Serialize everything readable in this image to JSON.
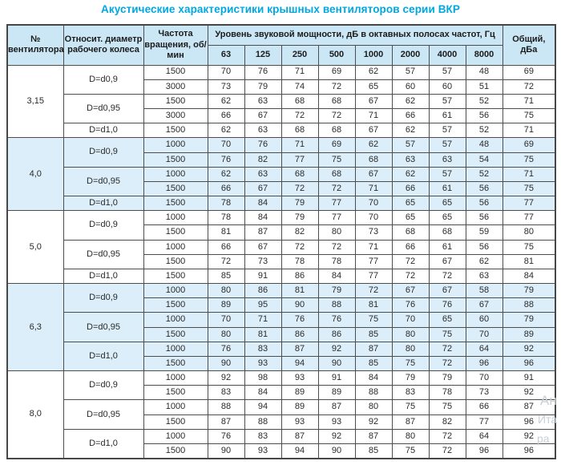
{
  "title": "Акустические характеристики крышных вентиляторов серии ВКР",
  "table": {
    "headers": {
      "fan": "№ вентилятора",
      "diameter": "Относит. диаметр рабочего колеса",
      "speed": "Частота вращения, об/мин",
      "span": "Уровень звуковой мощности, дБ в октавных полосах частот, Гц",
      "freqs": [
        "63",
        "125",
        "250",
        "500",
        "1000",
        "2000",
        "4000",
        "8000"
      ],
      "total": "Общий, дБа"
    },
    "groups": [
      {
        "fan": "3,15",
        "shaded": false,
        "subgroups": [
          {
            "diameter": "D=d0,9",
            "rows": [
              {
                "speed": "1500",
                "values": [
                  70,
                  76,
                  71,
                  69,
                  62,
                  57,
                  57,
                  48
                ],
                "total": 69
              },
              {
                "speed": "3000",
                "values": [
                  73,
                  79,
                  74,
                  72,
                  65,
                  60,
                  60,
                  51
                ],
                "total": 72
              }
            ]
          },
          {
            "diameter": "D=d0,95",
            "rows": [
              {
                "speed": "1500",
                "values": [
                  62,
                  63,
                  68,
                  68,
                  67,
                  62,
                  57,
                  52
                ],
                "total": 71
              },
              {
                "speed": "3000",
                "values": [
                  66,
                  67,
                  72,
                  72,
                  71,
                  66,
                  61,
                  56
                ],
                "total": 75
              }
            ]
          },
          {
            "diameter": "D=d1,0",
            "rows": [
              {
                "speed": "1500",
                "values": [
                  62,
                  63,
                  68,
                  68,
                  67,
                  62,
                  57,
                  52
                ],
                "total": 71
              }
            ]
          }
        ]
      },
      {
        "fan": "4,0",
        "shaded": true,
        "subgroups": [
          {
            "diameter": "D=d0,9",
            "rows": [
              {
                "speed": "1000",
                "values": [
                  70,
                  76,
                  71,
                  69,
                  62,
                  57,
                  57,
                  48
                ],
                "total": 69
              },
              {
                "speed": "1500",
                "values": [
                  76,
                  82,
                  77,
                  75,
                  68,
                  63,
                  63,
                  54
                ],
                "total": 75
              }
            ]
          },
          {
            "diameter": "D=d0,95",
            "rows": [
              {
                "speed": "1000",
                "values": [
                  62,
                  63,
                  68,
                  68,
                  67,
                  62,
                  57,
                  52
                ],
                "total": 71
              },
              {
                "speed": "1500",
                "values": [
                  66,
                  67,
                  72,
                  72,
                  71,
                  66,
                  61,
                  56
                ],
                "total": 75
              }
            ]
          },
          {
            "diameter": "D=d1,0",
            "rows": [
              {
                "speed": "1500",
                "values": [
                  78,
                  84,
                  79,
                  77,
                  70,
                  65,
                  65,
                  56
                ],
                "total": 77
              }
            ]
          }
        ]
      },
      {
        "fan": "5,0",
        "shaded": false,
        "subgroups": [
          {
            "diameter": "D=d0,9",
            "rows": [
              {
                "speed": "1000",
                "values": [
                  78,
                  84,
                  79,
                  77,
                  70,
                  65,
                  65,
                  56
                ],
                "total": 77
              },
              {
                "speed": "1500",
                "values": [
                  81,
                  87,
                  82,
                  80,
                  73,
                  68,
                  68,
                  59
                ],
                "total": 80
              }
            ]
          },
          {
            "diameter": "D=d0,95",
            "rows": [
              {
                "speed": "1000",
                "values": [
                  66,
                  67,
                  72,
                  72,
                  71,
                  66,
                  61,
                  56
                ],
                "total": 75
              },
              {
                "speed": "1500",
                "values": [
                  72,
                  73,
                  78,
                  78,
                  77,
                  72,
                  67,
                  62
                ],
                "total": 81
              }
            ]
          },
          {
            "diameter": "D=d1,0",
            "rows": [
              {
                "speed": "1500",
                "values": [
                  85,
                  91,
                  86,
                  84,
                  77,
                  72,
                  72,
                  63
                ],
                "total": 84
              }
            ]
          }
        ]
      },
      {
        "fan": "6,3",
        "shaded": true,
        "subgroups": [
          {
            "diameter": "D=d0,9",
            "rows": [
              {
                "speed": "1000",
                "values": [
                  80,
                  86,
                  81,
                  79,
                  72,
                  67,
                  67,
                  58
                ],
                "total": 79
              },
              {
                "speed": "1500",
                "values": [
                  89,
                  95,
                  90,
                  88,
                  81,
                  76,
                  76,
                  67
                ],
                "total": 88
              }
            ]
          },
          {
            "diameter": "D=d0,95",
            "rows": [
              {
                "speed": "1000",
                "values": [
                  70,
                  71,
                  76,
                  76,
                  75,
                  70,
                  65,
                  60
                ],
                "total": 79
              },
              {
                "speed": "1500",
                "values": [
                  80,
                  81,
                  86,
                  86,
                  85,
                  80,
                  75,
                  70
                ],
                "total": 89
              }
            ]
          },
          {
            "diameter": "D=d1,0",
            "rows": [
              {
                "speed": "1000",
                "values": [
                  76,
                  83,
                  87,
                  92,
                  87,
                  80,
                  72,
                  64
                ],
                "total": 92
              },
              {
                "speed": "1500",
                "values": [
                  90,
                  93,
                  94,
                  90,
                  85,
                  75,
                  72,
                  96
                ],
                "total": 96
              }
            ]
          }
        ]
      },
      {
        "fan": "8,0",
        "shaded": false,
        "subgroups": [
          {
            "diameter": "D=d0,9",
            "rows": [
              {
                "speed": "1000",
                "values": [
                  92,
                  98,
                  93,
                  91,
                  84,
                  79,
                  79,
                  70
                ],
                "total": 91
              },
              {
                "speed": "1500",
                "values": [
                  83,
                  84,
                  89,
                  89,
                  88,
                  83,
                  78,
                  73
                ],
                "total": 92
              }
            ]
          },
          {
            "diameter": "D=d0,95",
            "rows": [
              {
                "speed": "1000",
                "values": [
                  88,
                  94,
                  89,
                  87,
                  80,
                  75,
                  75,
                  66
                ],
                "total": 87
              },
              {
                "speed": "1500",
                "values": [
                  87,
                  88,
                  93,
                  93,
                  92,
                  87,
                  82,
                  77
                ],
                "total": 96
              }
            ]
          },
          {
            "diameter": "D=d1,0",
            "rows": [
              {
                "speed": "1000",
                "values": [
                  76,
                  83,
                  87,
                  92,
                  87,
                  80,
                  72,
                  64
                ],
                "total": 92
              },
              {
                "speed": "1500",
                "values": [
                  90,
                  93,
                  94,
                  90,
                  85,
                  75,
                  72,
                  96
                ],
                "total": 96
              }
            ]
          }
        ]
      }
    ]
  },
  "watermark": {
    "fragments": [
      "Ан",
      "Ита",
      "ра"
    ]
  },
  "colors": {
    "title": "#00a7e0",
    "header_bg": "#cbe7f5",
    "shaded_row_bg": "#dceef9",
    "border": "#4d4d4d",
    "watermark": "#c7d0d7"
  }
}
